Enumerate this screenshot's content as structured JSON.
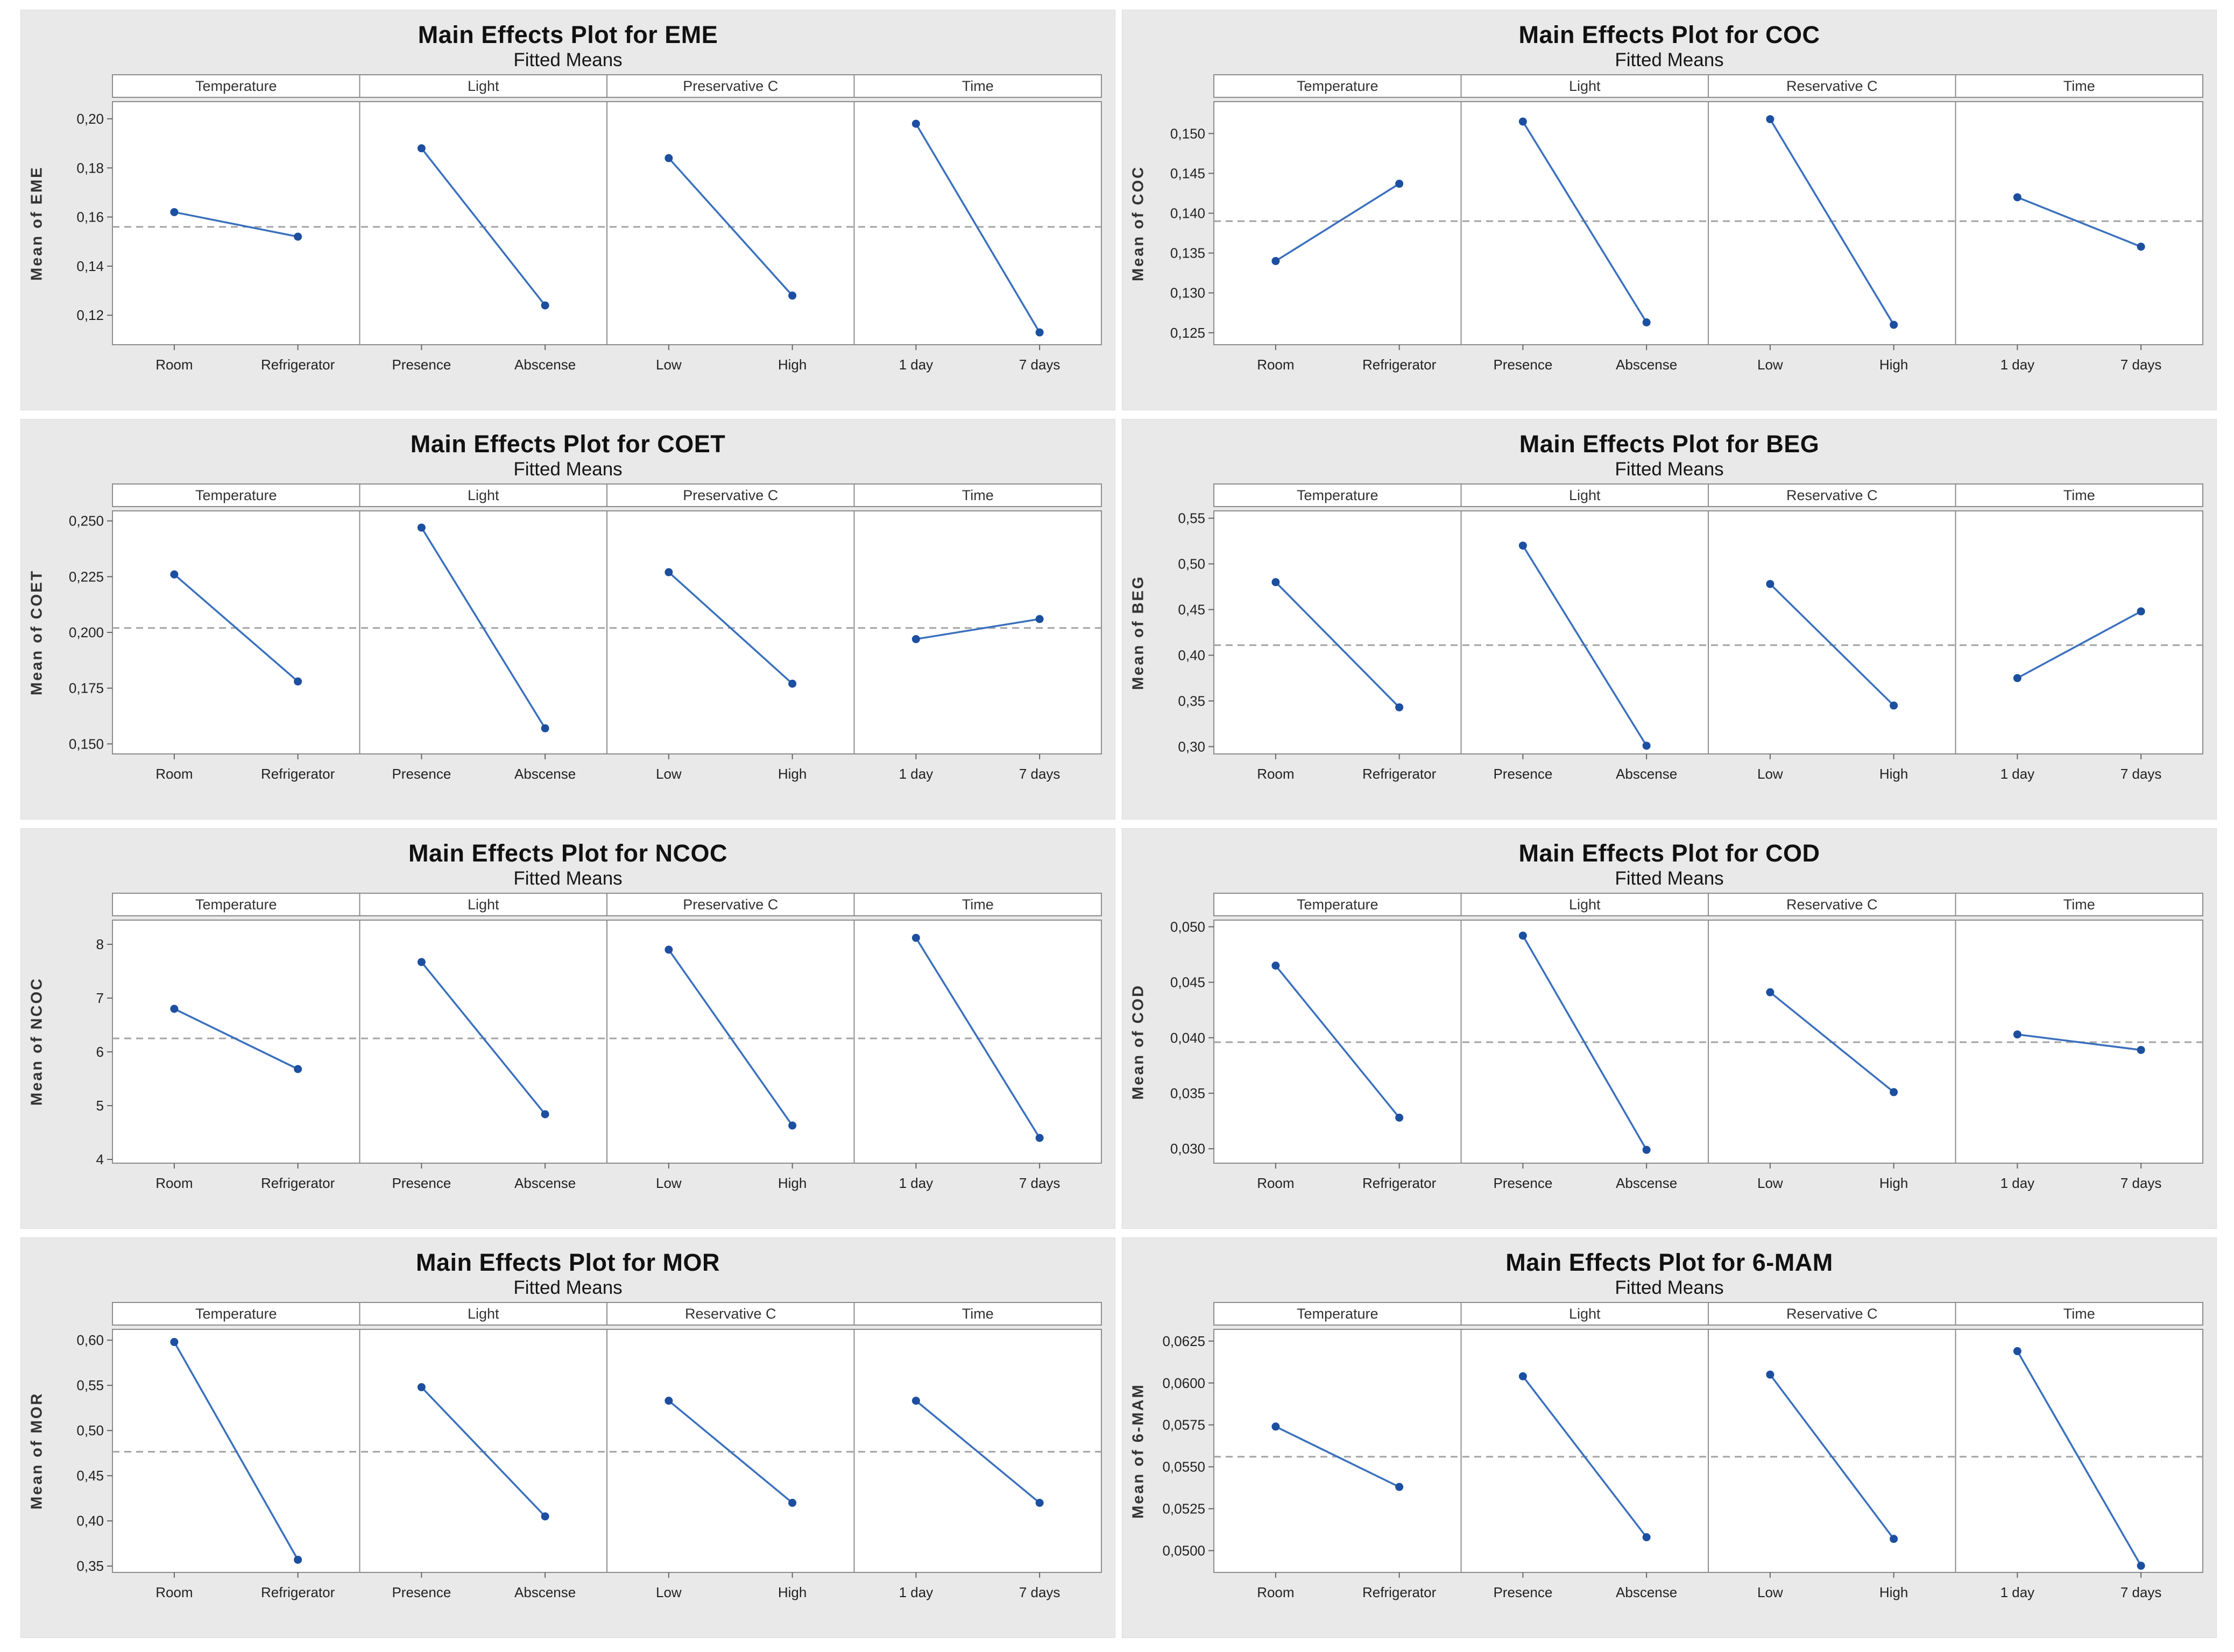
{
  "colors": {
    "page_bg": "#ffffff",
    "card_bg": "#e9e9e9",
    "plot_bg": "#ffffff",
    "frame_gray": "#8c8c8c",
    "tick_gray": "#666666",
    "text_dark": "#222222",
    "header_text": "#333333",
    "line_blue": "#3a70bd",
    "dot_blue": "#1c4fa0",
    "dashed_gray": "#a3a3a3"
  },
  "chart_data": [
    {
      "id": "eme",
      "type": "line",
      "title": "Main Effects Plot for EME",
      "subtitle": "Fitted Means",
      "ylabel": "Mean of EME",
      "legend_position": "none",
      "grid": false,
      "reference_mean": 0.156,
      "ylim": [
        0.108,
        0.207
      ],
      "yticks": [
        {
          "label": "0,20",
          "value": 0.2
        },
        {
          "label": "0,18",
          "value": 0.18
        },
        {
          "label": "0,16",
          "value": 0.16
        },
        {
          "label": "0,14",
          "value": 0.14
        },
        {
          "label": "0,12",
          "value": 0.12
        }
      ],
      "panels": [
        {
          "header": "Temperature",
          "points": [
            {
              "label": "Room",
              "value": 0.162
            },
            {
              "label": "Refrigerator",
              "value": 0.152
            }
          ]
        },
        {
          "header": "Light",
          "points": [
            {
              "label": "Presence",
              "value": 0.188
            },
            {
              "label": "Abscense",
              "value": 0.124
            }
          ]
        },
        {
          "header": "Preservative C",
          "points": [
            {
              "label": "Low",
              "value": 0.184
            },
            {
              "label": "High",
              "value": 0.128
            }
          ]
        },
        {
          "header": "Time",
          "points": [
            {
              "label": "1 day",
              "value": 0.198
            },
            {
              "label": "7 days",
              "value": 0.113
            }
          ]
        }
      ]
    },
    {
      "id": "coc",
      "type": "line",
      "title": "Main Effects Plot for COC",
      "subtitle": "Fitted Means",
      "ylabel": "Mean of COC",
      "legend_position": "none",
      "grid": false,
      "reference_mean": 0.139,
      "ylim": [
        0.1235,
        0.154
      ],
      "yticks": [
        {
          "label": "0,150",
          "value": 0.15
        },
        {
          "label": "0,145",
          "value": 0.145
        },
        {
          "label": "0,140",
          "value": 0.14
        },
        {
          "label": "0,135",
          "value": 0.135
        },
        {
          "label": "0,130",
          "value": 0.13
        },
        {
          "label": "0,125",
          "value": 0.125
        }
      ],
      "panels": [
        {
          "header": "Temperature",
          "points": [
            {
              "label": "Room",
              "value": 0.134
            },
            {
              "label": "Refrigerator",
              "value": 0.1437
            }
          ]
        },
        {
          "header": "Light",
          "points": [
            {
              "label": "Presence",
              "value": 0.1515
            },
            {
              "label": "Abscense",
              "value": 0.1263
            }
          ]
        },
        {
          "header": "Reservative C",
          "points": [
            {
              "label": "Low",
              "value": 0.1518
            },
            {
              "label": "High",
              "value": 0.126
            }
          ]
        },
        {
          "header": "Time",
          "points": [
            {
              "label": "1 day",
              "value": 0.142
            },
            {
              "label": "7 days",
              "value": 0.1358
            }
          ]
        }
      ]
    },
    {
      "id": "coet",
      "type": "line",
      "title": "Main Effects Plot for COET",
      "subtitle": "Fitted Means",
      "ylabel": "Mean of COET",
      "legend_position": "none",
      "grid": false,
      "reference_mean": 0.202,
      "ylim": [
        0.1455,
        0.2545
      ],
      "yticks": [
        {
          "label": "0,250",
          "value": 0.25
        },
        {
          "label": "0,225",
          "value": 0.225
        },
        {
          "label": "0,200",
          "value": 0.2
        },
        {
          "label": "0,175",
          "value": 0.175
        },
        {
          "label": "0,150",
          "value": 0.15
        }
      ],
      "panels": [
        {
          "header": "Temperature",
          "points": [
            {
              "label": "Room",
              "value": 0.226
            },
            {
              "label": "Refrigerator",
              "value": 0.178
            }
          ]
        },
        {
          "header": "Light",
          "points": [
            {
              "label": "Presence",
              "value": 0.247
            },
            {
              "label": "Abscense",
              "value": 0.157
            }
          ]
        },
        {
          "header": "Preservative C",
          "points": [
            {
              "label": "Low",
              "value": 0.227
            },
            {
              "label": "High",
              "value": 0.177
            }
          ]
        },
        {
          "header": "Time",
          "points": [
            {
              "label": "1 day",
              "value": 0.197
            },
            {
              "label": "7 days",
              "value": 0.206
            }
          ]
        }
      ]
    },
    {
      "id": "beg",
      "type": "line",
      "title": "Main Effects Plot for BEG",
      "subtitle": "Fitted Means",
      "ylabel": "Mean of BEG",
      "legend_position": "none",
      "grid": false,
      "reference_mean": 0.411,
      "ylim": [
        0.292,
        0.558
      ],
      "yticks": [
        {
          "label": "0,55",
          "value": 0.55
        },
        {
          "label": "0,50",
          "value": 0.5
        },
        {
          "label": "0,45",
          "value": 0.45
        },
        {
          "label": "0,40",
          "value": 0.4
        },
        {
          "label": "0,35",
          "value": 0.35
        },
        {
          "label": "0,30",
          "value": 0.3
        }
      ],
      "panels": [
        {
          "header": "Temperature",
          "points": [
            {
              "label": "Room",
              "value": 0.48
            },
            {
              "label": "Refrigerator",
              "value": 0.343
            }
          ]
        },
        {
          "header": "Light",
          "points": [
            {
              "label": "Presence",
              "value": 0.52
            },
            {
              "label": "Abscense",
              "value": 0.301
            }
          ]
        },
        {
          "header": "Reservative C",
          "points": [
            {
              "label": "Low",
              "value": 0.478
            },
            {
              "label": "High",
              "value": 0.345
            }
          ]
        },
        {
          "header": "Time",
          "points": [
            {
              "label": "1 day",
              "value": 0.375
            },
            {
              "label": "7 days",
              "value": 0.448
            }
          ]
        }
      ]
    },
    {
      "id": "ncoc",
      "type": "line",
      "title": "Main Effects Plot for NCOC",
      "subtitle": "Fitted Means",
      "ylabel": "Mean of NCOC",
      "legend_position": "none",
      "grid": false,
      "reference_mean": 6.25,
      "ylim": [
        3.93,
        8.45
      ],
      "yticks": [
        {
          "label": "8",
          "value": 8
        },
        {
          "label": "7",
          "value": 7
        },
        {
          "label": "6",
          "value": 6
        },
        {
          "label": "5",
          "value": 5
        },
        {
          "label": "4",
          "value": 4
        }
      ],
      "panels": [
        {
          "header": "Temperature",
          "points": [
            {
              "label": "Room",
              "value": 6.8
            },
            {
              "label": "Refrigerator",
              "value": 5.68
            }
          ]
        },
        {
          "header": "Light",
          "points": [
            {
              "label": "Presence",
              "value": 7.67
            },
            {
              "label": "Abscense",
              "value": 4.84
            }
          ]
        },
        {
          "header": "Preservative C",
          "points": [
            {
              "label": "Low",
              "value": 7.9
            },
            {
              "label": "High",
              "value": 4.63
            }
          ]
        },
        {
          "header": "Time",
          "points": [
            {
              "label": "1 day",
              "value": 8.12
            },
            {
              "label": "7 days",
              "value": 4.4
            }
          ]
        }
      ]
    },
    {
      "id": "cod",
      "type": "line",
      "title": "Main Effects Plot for COD",
      "subtitle": "Fitted Means",
      "ylabel": "Mean of COD",
      "legend_position": "none",
      "grid": false,
      "reference_mean": 0.0396,
      "ylim": [
        0.0287,
        0.0506
      ],
      "yticks": [
        {
          "label": "0,050",
          "value": 0.05
        },
        {
          "label": "0,045",
          "value": 0.045
        },
        {
          "label": "0,040",
          "value": 0.04
        },
        {
          "label": "0,035",
          "value": 0.035
        },
        {
          "label": "0,030",
          "value": 0.03
        }
      ],
      "panels": [
        {
          "header": "Temperature",
          "points": [
            {
              "label": "Room",
              "value": 0.0465
            },
            {
              "label": "Refrigerator",
              "value": 0.0328
            }
          ]
        },
        {
          "header": "Light",
          "points": [
            {
              "label": "Presence",
              "value": 0.0492
            },
            {
              "label": "Abscense",
              "value": 0.0299
            }
          ]
        },
        {
          "header": "Reservative C",
          "points": [
            {
              "label": "Low",
              "value": 0.0441
            },
            {
              "label": "High",
              "value": 0.0351
            }
          ]
        },
        {
          "header": "Time",
          "points": [
            {
              "label": "1 day",
              "value": 0.0403
            },
            {
              "label": "7 days",
              "value": 0.0389
            }
          ]
        }
      ]
    },
    {
      "id": "mor",
      "type": "line",
      "title": "Main Effects Plot for MOR",
      "subtitle": "Fitted Means",
      "ylabel": "Mean of MOR",
      "legend_position": "none",
      "grid": false,
      "reference_mean": 0.4765,
      "ylim": [
        0.343,
        0.612
      ],
      "yticks": [
        {
          "label": "0,60",
          "value": 0.6
        },
        {
          "label": "0,55",
          "value": 0.55
        },
        {
          "label": "0,50",
          "value": 0.5
        },
        {
          "label": "0,45",
          "value": 0.45
        },
        {
          "label": "0,40",
          "value": 0.4
        },
        {
          "label": "0,35",
          "value": 0.35
        }
      ],
      "panels": [
        {
          "header": "Temperature",
          "points": [
            {
              "label": "Room",
              "value": 0.598
            },
            {
              "label": "Refrigerator",
              "value": 0.357
            }
          ]
        },
        {
          "header": "Light",
          "points": [
            {
              "label": "Presence",
              "value": 0.548
            },
            {
              "label": "Abscense",
              "value": 0.405
            }
          ]
        },
        {
          "header": "Reservative C",
          "points": [
            {
              "label": "Low",
              "value": 0.533
            },
            {
              "label": "High",
              "value": 0.42
            }
          ]
        },
        {
          "header": "Time",
          "points": [
            {
              "label": "1 day",
              "value": 0.533
            },
            {
              "label": "7 days",
              "value": 0.42
            }
          ]
        }
      ]
    },
    {
      "id": "6mam",
      "type": "line",
      "title": "Main Effects Plot for 6-MAM",
      "subtitle": "Fitted Means",
      "ylabel": "Mean of 6-MAM",
      "legend_position": "none",
      "grid": false,
      "reference_mean": 0.0556,
      "ylim": [
        0.0487,
        0.0632
      ],
      "yticks": [
        {
          "label": "0,0625",
          "value": 0.0625
        },
        {
          "label": "0,0600",
          "value": 0.06
        },
        {
          "label": "0,0575",
          "value": 0.0575
        },
        {
          "label": "0,0550",
          "value": 0.055
        },
        {
          "label": "0,0525",
          "value": 0.0525
        },
        {
          "label": "0,0500",
          "value": 0.05
        }
      ],
      "panels": [
        {
          "header": "Temperature",
          "points": [
            {
              "label": "Room",
              "value": 0.0574
            },
            {
              "label": "Refrigerator",
              "value": 0.0538
            }
          ]
        },
        {
          "header": "Light",
          "points": [
            {
              "label": "Presence",
              "value": 0.0604
            },
            {
              "label": "Abscense",
              "value": 0.0508
            }
          ]
        },
        {
          "header": "Reservative C",
          "points": [
            {
              "label": "Low",
              "value": 0.0605
            },
            {
              "label": "High",
              "value": 0.0507
            }
          ]
        },
        {
          "header": "Time",
          "points": [
            {
              "label": "1 day",
              "value": 0.0619
            },
            {
              "label": "7 days",
              "value": 0.0491
            }
          ]
        }
      ]
    }
  ]
}
